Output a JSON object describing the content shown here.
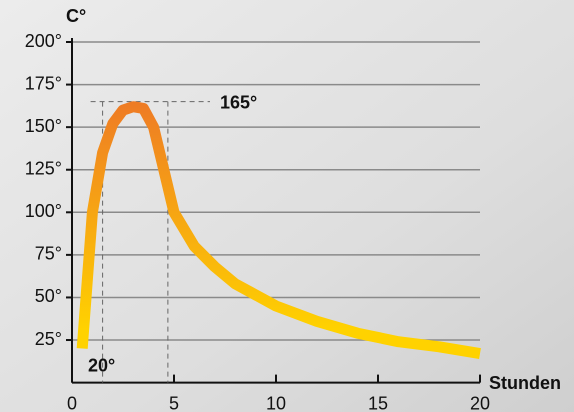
{
  "chart_data": {
    "type": "line",
    "x_label": "Stunden",
    "y_label": "C°",
    "x": [
      0.5,
      1,
      1.5,
      2,
      2.5,
      3,
      3.5,
      4,
      4.5,
      5,
      6,
      7,
      8,
      10,
      12,
      14,
      16,
      18,
      20
    ],
    "series": [
      {
        "values": [
          20,
          100,
          135,
          152,
          160,
          162,
          161,
          150,
          125,
          100,
          80,
          68,
          58,
          45,
          36,
          29,
          24,
          21,
          17
        ],
        "gradient": [
          "#ee7a25",
          "#ffd200"
        ]
      }
    ],
    "xlim": [
      0,
      20
    ],
    "xticks": [
      0,
      5,
      10,
      15,
      20
    ],
    "ylim": [
      0,
      200
    ],
    "yticks": [
      {
        "value": 25,
        "label": "25°"
      },
      {
        "value": 50,
        "label": "50°"
      },
      {
        "value": 75,
        "label": "75°"
      },
      {
        "value": 100,
        "label": "100°"
      },
      {
        "value": 125,
        "label": "125°"
      },
      {
        "value": 150,
        "label": "150°"
      },
      {
        "value": 175,
        "label": "175°"
      },
      {
        "value": 200,
        "label": "200°"
      }
    ],
    "grid": true,
    "annotations": [
      {
        "text": "165°",
        "y": 165,
        "x": [
          1.5,
          4.7
        ],
        "color": "#ee7a25"
      },
      {
        "text": "20°",
        "y": 20,
        "color": "#f5a623"
      }
    ]
  }
}
